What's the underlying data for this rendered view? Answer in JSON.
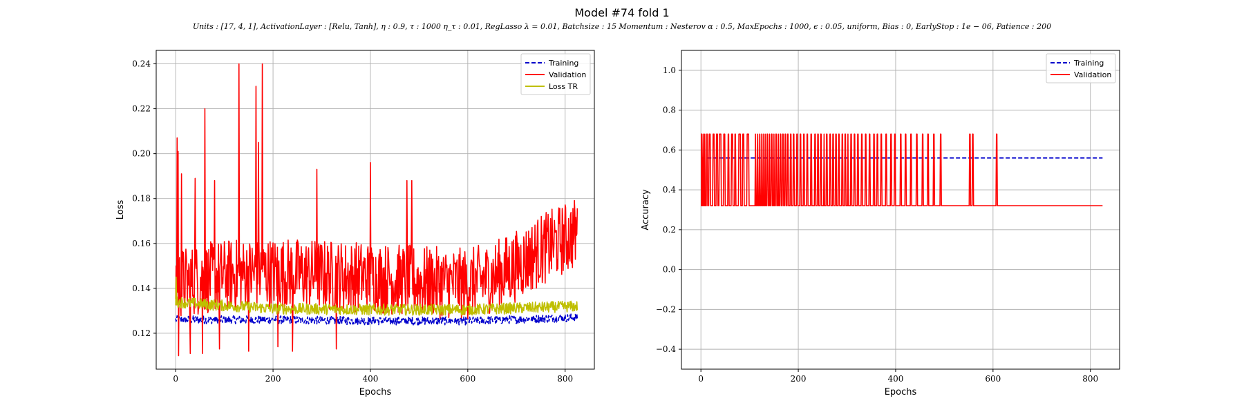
{
  "figure": {
    "title": "Model #74 fold 1",
    "params": "Units : [17, 4, 1], ActivationLayer : [Relu, Tanh], η : 0.9, τ : 1000 η_τ : 0.01, RegLasso λ = 0.01, Batchsize : 15 Momentum : Nesterov α : 0.5, MaxEpochs : 1000, ϵ : 0.05, uniform, Bias : 0, EarlyStop : 1e − 06, Patience : 200"
  },
  "colors": {
    "training": "#0000cc",
    "validation": "#ff0000",
    "loss_tr": "#bfbf00",
    "grid": "#b0b0b0",
    "axes": "#000000"
  },
  "chart_data": [
    {
      "type": "line",
      "id": "loss",
      "xlabel": "Epochs",
      "ylabel": "Loss",
      "xlim": [
        -40,
        860
      ],
      "ylim": [
        0.104,
        0.246
      ],
      "xticks": [
        0,
        200,
        400,
        600,
        800
      ],
      "yticks": [
        0.12,
        0.14,
        0.16,
        0.18,
        0.2,
        0.22,
        0.24
      ],
      "ytick_labels": [
        "0.12",
        "0.14",
        "0.16",
        "0.18",
        "0.20",
        "0.22",
        "0.24"
      ],
      "grid": true,
      "legend_position": "upper right",
      "n_epochs": 826,
      "series": [
        {
          "name": "Training",
          "style": "dashed",
          "color": "#0000cc",
          "anchors": [
            [
              0,
              0.126
            ],
            [
              100,
              0.126
            ],
            [
              200,
              0.126
            ],
            [
              400,
              0.1255
            ],
            [
              600,
              0.1255
            ],
            [
              826,
              0.127
            ]
          ],
          "noise": 0.0018
        },
        {
          "name": "Validation",
          "style": "solid",
          "color": "#ff0000",
          "anchors": [
            [
              0,
              0.142
            ],
            [
              100,
              0.146
            ],
            [
              200,
              0.147
            ],
            [
              300,
              0.146
            ],
            [
              400,
              0.145
            ],
            [
              500,
              0.143
            ],
            [
              600,
              0.142
            ],
            [
              650,
              0.145
            ],
            [
              700,
              0.15
            ],
            [
              750,
              0.157
            ],
            [
              826,
              0.165
            ]
          ],
          "noise": 0.016,
          "peaks": [
            [
              3,
              0.207
            ],
            [
              5,
              0.201
            ],
            [
              12,
              0.191
            ],
            [
              60,
              0.22
            ],
            [
              130,
              0.24
            ],
            [
              165,
              0.23
            ],
            [
              178,
              0.24
            ],
            [
              170,
              0.205
            ],
            [
              290,
              0.193
            ],
            [
              400,
              0.196
            ],
            [
              485,
              0.188
            ],
            [
              475,
              0.188
            ],
            [
              40,
              0.189
            ],
            [
              80,
              0.188
            ]
          ],
          "troughs": [
            [
              6,
              0.11
            ],
            [
              30,
              0.111
            ],
            [
              55,
              0.111
            ],
            [
              90,
              0.113
            ],
            [
              150,
              0.112
            ],
            [
              240,
              0.112
            ],
            [
              210,
              0.114
            ],
            [
              330,
              0.113
            ]
          ]
        },
        {
          "name": "Loss TR",
          "style": "solid",
          "color": "#bfbf00",
          "anchors": [
            [
              0,
              0.134
            ],
            [
              50,
              0.133
            ],
            [
              200,
              0.131
            ],
            [
              400,
              0.1305
            ],
            [
              600,
              0.1305
            ],
            [
              826,
              0.132
            ]
          ],
          "noise": 0.0025,
          "peaks": [
            [
              1,
              0.145
            ]
          ]
        }
      ]
    },
    {
      "type": "line",
      "id": "accuracy",
      "xlabel": "Epochs",
      "ylabel": "Accuracy",
      "xlim": [
        -40,
        860
      ],
      "ylim": [
        -0.5,
        1.1
      ],
      "xticks": [
        0,
        200,
        400,
        600,
        800
      ],
      "yticks": [
        -0.4,
        -0.2,
        0.0,
        0.2,
        0.4,
        0.6,
        0.8,
        1.0
      ],
      "ytick_labels": [
        "−0.4",
        "−0.2",
        "0.0",
        "0.2",
        "0.4",
        "0.6",
        "0.8",
        "1.0"
      ],
      "grid": true,
      "legend_position": "upper right",
      "n_epochs": 826,
      "series": [
        {
          "name": "Training",
          "style": "dashed",
          "color": "#0000cc",
          "value": 0.56
        },
        {
          "name": "Validation",
          "style": "solid",
          "color": "#ff0000",
          "low": 0.32,
          "high": 0.68,
          "toggle_epochs": [
            2,
            3,
            5,
            6,
            8,
            9,
            12,
            14,
            17,
            20,
            25,
            28,
            32,
            35,
            38,
            42,
            47,
            50,
            56,
            58,
            63,
            66,
            70,
            72,
            78,
            82,
            86,
            89,
            95,
            99,
            112,
            113,
            116,
            117,
            120,
            121,
            124,
            125,
            128,
            129,
            132,
            133,
            136,
            138,
            141,
            142,
            145,
            147,
            150,
            151,
            154,
            156,
            159,
            160,
            163,
            165,
            168,
            170,
            173,
            175,
            178,
            180,
            184,
            186,
            190,
            192,
            197,
            199,
            204,
            206,
            211,
            213,
            218,
            220,
            226,
            228,
            234,
            236,
            240,
            242,
            246,
            248,
            253,
            254,
            258,
            260,
            265,
            267,
            271,
            273,
            277,
            279,
            283,
            285,
            290,
            292,
            296,
            298,
            302,
            303,
            308,
            310,
            315,
            317,
            322,
            324,
            330,
            332,
            338,
            340,
            346,
            348,
            355,
            357,
            362,
            364,
            370,
            372,
            380,
            382,
            390,
            392,
            398,
            400,
            410,
            412,
            420,
            422,
            431,
            433,
            443,
            445,
            455,
            457,
            466,
            468,
            478,
            480,
            492,
            494,
            552,
            554,
            558,
            560,
            607,
            609
          ]
        }
      ]
    }
  ]
}
